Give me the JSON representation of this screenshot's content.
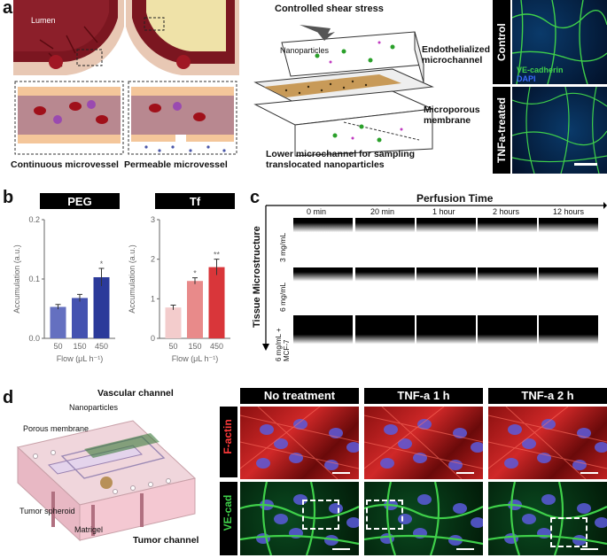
{
  "panel_labels": {
    "a": "a",
    "b": "b",
    "c": "c",
    "d": "d"
  },
  "panel_a": {
    "lumen": "Lumen",
    "continuous": "Continuous microvessel",
    "permeable": "Permeable microvessel",
    "shear": "Controlled shear stress",
    "nanoparticles": "Nanoparticles",
    "endothelialized": "Endothelialized microchannel",
    "porous": "Microporous membrane",
    "lower": "Lower microchannel for sampling translocated nanoparticles",
    "control": "Control",
    "tnfa_treated": "TNFa-treated",
    "vecadherin": "VE-cadherin",
    "dapi": "DAPI"
  },
  "panel_b": {
    "chart_data": [
      {
        "type": "bar",
        "title": "PEG",
        "xlabel": "Flow (μL h⁻¹)",
        "ylabel": "Accumulation (a.u.)",
        "categories": [
          "50",
          "150",
          "450"
        ],
        "values": [
          0.053,
          0.068,
          0.103
        ],
        "errors": [
          0.004,
          0.006,
          0.015
        ],
        "ylim": [
          0,
          0.2
        ],
        "yticks": [
          "0.0",
          "0.1",
          "0.2"
        ],
        "sig": [
          "",
          "",
          "*"
        ],
        "colors": [
          "#6470c0",
          "#4452b0",
          "#2b3a9a"
        ]
      },
      {
        "type": "bar",
        "title": "Tf",
        "xlabel": "Flow (μL h⁻¹)",
        "ylabel": "Accumulation (a.u.)",
        "categories": [
          "50",
          "150",
          "450"
        ],
        "values": [
          0.78,
          1.45,
          1.8
        ],
        "errors": [
          0.06,
          0.08,
          0.2
        ],
        "ylim": [
          0,
          3
        ],
        "yticks": [
          "0",
          "1",
          "2",
          "3"
        ],
        "sig": [
          "",
          "*",
          "**"
        ],
        "colors": [
          "#f3cccc",
          "#e88a8a",
          "#d9363a"
        ]
      }
    ]
  },
  "panel_c": {
    "title": "Perfusion Time",
    "axis": "Tissue Microstructure",
    "times": [
      "0 min",
      "20 min",
      "1 hour",
      "2 hours",
      "12 hours"
    ],
    "rows": [
      "3 mg/mL",
      "6 mg/mL",
      "6 mg/mL + MCF-7"
    ]
  },
  "panel_d": {
    "vascular": "Vascular channel",
    "nanoparticles": "Nanoparticles",
    "porous": "Porous membrane",
    "spheroid": "Tumor spheroid",
    "matrigel": "Matrigel",
    "tumor": "Tumor channel",
    "headers": [
      "No treatment",
      "TNF-a 1 h",
      "TNF-a 2 h"
    ],
    "factin": "F-actin",
    "vecad": "VE-cad"
  }
}
